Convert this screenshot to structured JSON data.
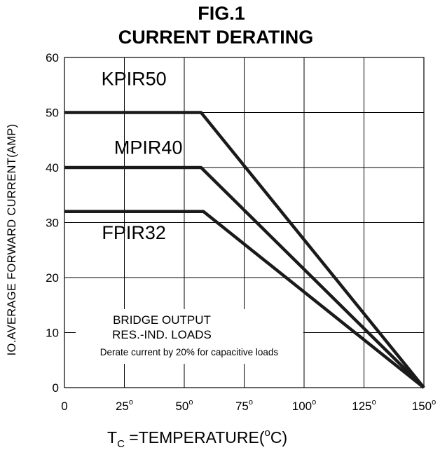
{
  "chart_data": {
    "type": "line",
    "title_line1": "FIG.1",
    "title_line2": "CURRENT DERATING",
    "ylabel": "IO.AVERAGE FORWARD CURRENT(AMP)",
    "xlabel": {
      "prefix": "T",
      "subscript": "C",
      "text": " =TEMPERATURE(",
      "superscript": "o",
      "unit": "C)"
    },
    "xlim": [
      0,
      150
    ],
    "ylim": [
      0,
      60
    ],
    "x_ticks": [
      {
        "value": 0,
        "label": "0",
        "deg": false
      },
      {
        "value": 25,
        "label": "25",
        "deg": true
      },
      {
        "value": 50,
        "label": "50",
        "deg": true
      },
      {
        "value": 75,
        "label": "75",
        "deg": true
      },
      {
        "value": 100,
        "label": "100",
        "deg": true
      },
      {
        "value": 125,
        "label": "125",
        "deg": true
      },
      {
        "value": 150,
        "label": "150",
        "deg": true
      }
    ],
    "y_ticks": [
      0,
      10,
      20,
      30,
      40,
      50,
      60
    ],
    "grid": true,
    "series": [
      {
        "name": "KPIR50",
        "x": [
          0,
          57,
          150
        ],
        "y": [
          50,
          50,
          0
        ],
        "label_at": {
          "x": 29,
          "y": 55
        }
      },
      {
        "name": "MPIR40",
        "x": [
          0,
          57,
          150
        ],
        "y": [
          40,
          40,
          0
        ],
        "label_at": {
          "x": 35,
          "y": 42.5
        }
      },
      {
        "name": "FPIR32",
        "x": [
          0,
          58,
          150
        ],
        "y": [
          32,
          32,
          0
        ],
        "label_at": {
          "x": 29,
          "y": 27
        }
      }
    ],
    "annotations": [
      "BRIDGE  OUTPUT",
      "RES.-IND.  LOADS",
      "Derate current by 20% for capacitive loads"
    ]
  }
}
